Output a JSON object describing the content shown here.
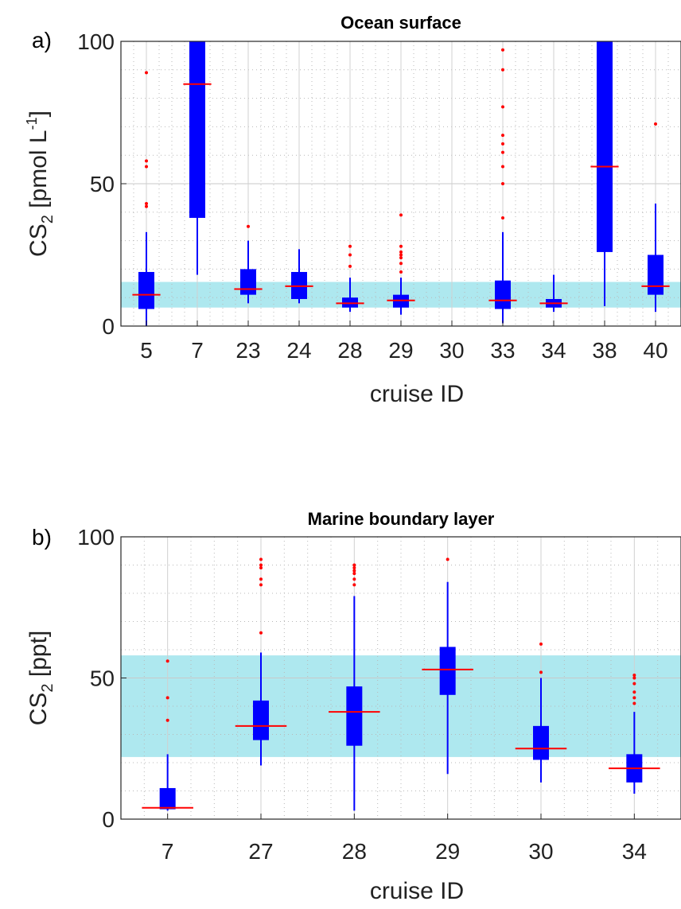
{
  "chart_data": [
    {
      "type": "box",
      "panel_label": "a)",
      "title": "Ocean surface",
      "xlabel": "cruise ID",
      "ylabel": {
        "main": "CS",
        "sub": "2",
        "unit_pre": " [pmol L",
        "sup": "-1",
        "unit_post": "]"
      },
      "ylim": [
        0,
        100
      ],
      "yticks": [
        0,
        50,
        100
      ],
      "grid": true,
      "minor_grid": true,
      "colors": {
        "box": "#0000ff",
        "median": "#ff0000",
        "outlier": "#ff0000",
        "band": "#aee8ef"
      },
      "shaded_band": [
        6.5,
        15.5
      ],
      "categories": [
        "5",
        "7",
        "23",
        "24",
        "28",
        "29",
        "30",
        "33",
        "34",
        "38",
        "40"
      ],
      "boxes": [
        {
          "whisker_low": 0,
          "q1": 6,
          "median": 11,
          "q3": 19,
          "whisker_high": 33,
          "outliers": [
            42,
            43,
            56,
            58,
            89
          ]
        },
        {
          "whisker_low": 18,
          "q1": 38,
          "median": 85,
          "q3": 100,
          "whisker_high": 100,
          "outliers": []
        },
        {
          "whisker_low": 8,
          "q1": 11,
          "median": 13,
          "q3": 20,
          "whisker_high": 30,
          "outliers": [
            35
          ]
        },
        {
          "whisker_low": 8,
          "q1": 9.5,
          "median": 14,
          "q3": 19,
          "whisker_high": 27,
          "outliers": []
        },
        {
          "whisker_low": 5,
          "q1": 6.5,
          "median": 8,
          "q3": 10,
          "whisker_high": 17,
          "outliers": [
            21,
            25,
            28
          ]
        },
        {
          "whisker_low": 4,
          "q1": 6.5,
          "median": 9,
          "q3": 11,
          "whisker_high": 17,
          "outliers": [
            19,
            22,
            24,
            25,
            26,
            28,
            39
          ]
        },
        null,
        {
          "whisker_low": 1,
          "q1": 6,
          "median": 9,
          "q3": 16,
          "whisker_high": 33,
          "outliers": [
            38,
            50,
            56,
            61,
            64,
            67,
            77,
            90,
            97
          ]
        },
        {
          "whisker_low": 5,
          "q1": 6.5,
          "median": 8,
          "q3": 9.5,
          "whisker_high": 18,
          "outliers": []
        },
        {
          "whisker_low": 7,
          "q1": 26,
          "median": 56,
          "q3": 100,
          "whisker_high": 100,
          "outliers": []
        },
        {
          "whisker_low": 5,
          "q1": 11,
          "median": 14,
          "q3": 25,
          "whisker_high": 43,
          "outliers": [
            71
          ]
        }
      ]
    },
    {
      "type": "box",
      "panel_label": "b)",
      "title": "Marine boundary layer",
      "xlabel": "cruise ID",
      "ylabel": {
        "main": "CS",
        "sub": "2",
        "unit_pre": " [ppt]",
        "sup": "",
        "unit_post": ""
      },
      "ylim": [
        0,
        100
      ],
      "yticks": [
        0,
        50,
        100
      ],
      "grid": true,
      "minor_grid": true,
      "colors": {
        "box": "#0000ff",
        "median": "#ff0000",
        "outlier": "#ff0000",
        "band": "#aee8ef"
      },
      "shaded_band": [
        22,
        58
      ],
      "categories": [
        "7",
        "27",
        "28",
        "29",
        "30",
        "34"
      ],
      "boxes": [
        {
          "whisker_low": 3,
          "q1": 3.5,
          "median": 4,
          "q3": 11,
          "whisker_high": 23,
          "outliers": [
            35,
            43,
            56
          ]
        },
        {
          "whisker_low": 19,
          "q1": 28,
          "median": 33,
          "q3": 42,
          "whisker_high": 59,
          "outliers": [
            66,
            83,
            85,
            89,
            90,
            92
          ]
        },
        {
          "whisker_low": 3,
          "q1": 26,
          "median": 38,
          "q3": 47,
          "whisker_high": 79,
          "outliers": [
            83,
            85,
            87,
            88,
            89,
            90
          ]
        },
        {
          "whisker_low": 16,
          "q1": 44,
          "median": 53,
          "q3": 61,
          "whisker_high": 84,
          "outliers": [
            92
          ]
        },
        {
          "whisker_low": 13,
          "q1": 21,
          "median": 25,
          "q3": 33,
          "whisker_high": 50,
          "outliers": [
            52,
            62
          ]
        },
        {
          "whisker_low": 9,
          "q1": 13,
          "median": 18,
          "q3": 23,
          "whisker_high": 38,
          "outliers": [
            41,
            43,
            45,
            48,
            50,
            51
          ]
        }
      ]
    }
  ]
}
